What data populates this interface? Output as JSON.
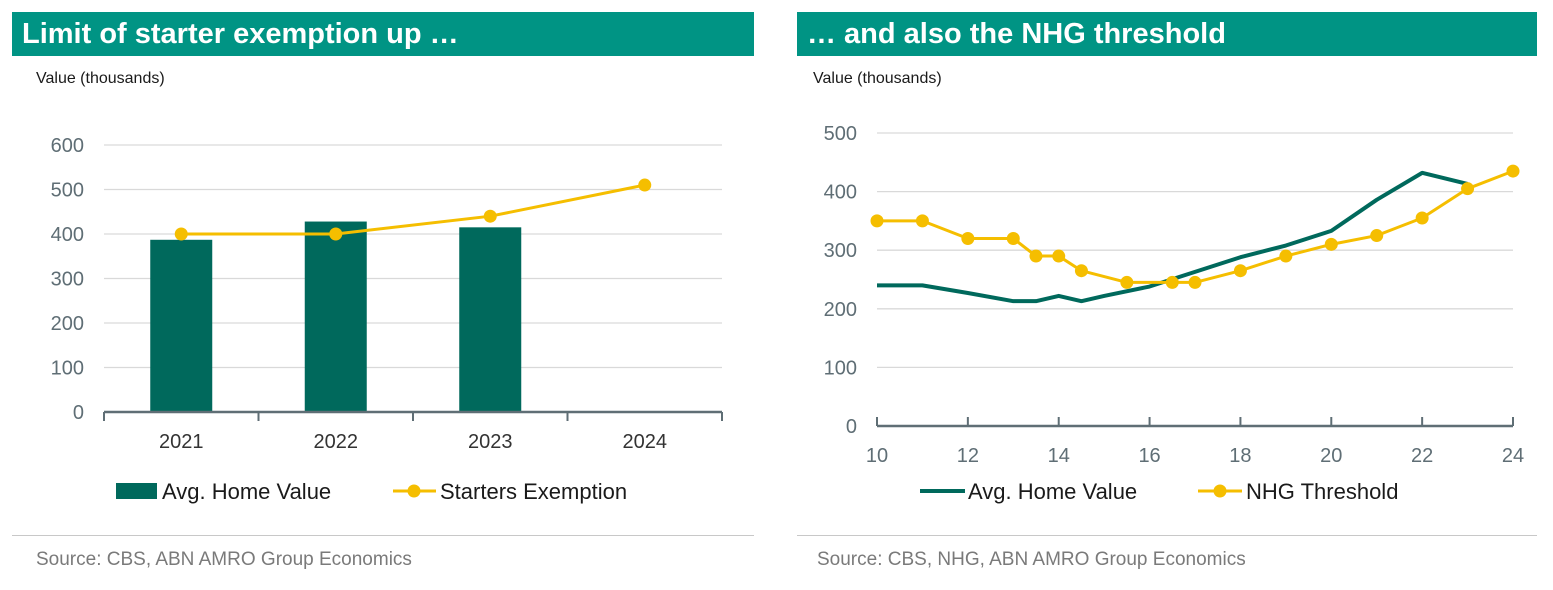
{
  "colors": {
    "header": "#009484",
    "bar": "#00695c",
    "line_exemption": "#f5be00",
    "grid": "#d9d9d9",
    "axis": "#5f6e75"
  },
  "left": {
    "title": "Limit of starter exemption up …",
    "unit_label": "Value (thousands)",
    "source": "Source: CBS, ABN AMRO Group Economics"
  },
  "right": {
    "title": "… and also the NHG threshold",
    "unit_label": "Value (thousands)",
    "source": "Source: CBS, NHG, ABN AMRO Group Economics"
  },
  "chart_data": [
    {
      "type": "bar",
      "title": "Limit of starter exemption up …",
      "ylabel": "Value (thousands)",
      "categories": [
        "2021",
        "2022",
        "2023",
        "2024"
      ],
      "ylim": [
        0,
        600
      ],
      "yticks": [
        0,
        100,
        200,
        300,
        400,
        500,
        600
      ],
      "grid": true,
      "legend": "bottom",
      "series": [
        {
          "name": "Avg. Home Value",
          "type": "bar",
          "color": "#00695c",
          "values": [
            387,
            428,
            415,
            null
          ]
        },
        {
          "name": "Starters Exemption",
          "type": "line",
          "color": "#f5be00",
          "values": [
            400,
            400,
            440,
            510
          ]
        }
      ]
    },
    {
      "type": "line",
      "title": "… and also the NHG threshold",
      "ylabel": "Value (thousands)",
      "xlim": [
        10,
        24
      ],
      "xticks": [
        10,
        12,
        14,
        16,
        18,
        20,
        22,
        24
      ],
      "ylim": [
        0,
        500
      ],
      "yticks": [
        0,
        100,
        200,
        300,
        400,
        500
      ],
      "grid": true,
      "legend": "bottom",
      "series": [
        {
          "name": "Avg. Home Value",
          "color": "#00695c",
          "markers": false,
          "x": [
            10,
            11,
            12,
            13,
            13.5,
            14,
            14.5,
            15,
            16,
            17,
            18,
            19,
            20,
            21,
            22,
            23
          ],
          "y": [
            240,
            240,
            227,
            213,
            213,
            222,
            213,
            222,
            238,
            263,
            288,
            308,
            333,
            386,
            432,
            413
          ]
        },
        {
          "name": "NHG Threshold",
          "color": "#f5be00",
          "markers": true,
          "x": [
            10,
            11,
            12,
            13,
            13.5,
            14,
            14.5,
            15.5,
            16.5,
            17,
            18,
            19,
            20,
            21,
            22,
            23,
            24
          ],
          "y": [
            350,
            350,
            320,
            320,
            290,
            290,
            265,
            245,
            245,
            245,
            265,
            290,
            310,
            325,
            355,
            405,
            435
          ]
        }
      ]
    }
  ]
}
